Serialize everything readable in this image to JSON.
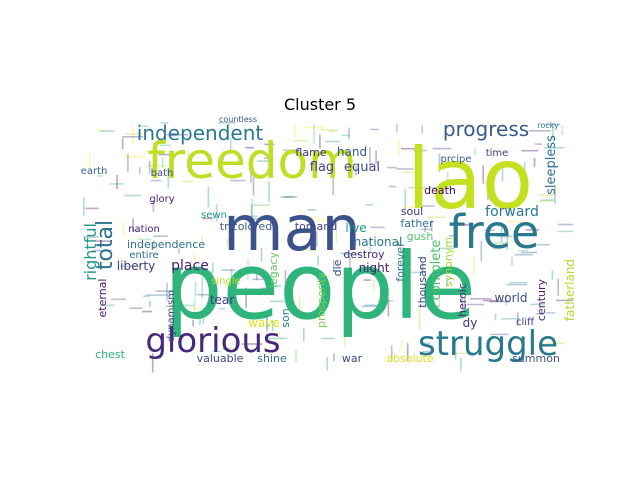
{
  "chart_data": {
    "type": "wordcloud",
    "title": "Cluster 5",
    "words": [
      {
        "text": "people",
        "weight": 1.0,
        "color": "#2fb47c"
      },
      {
        "text": "lao",
        "weight": 0.86,
        "color": "#c5e021"
      },
      {
        "text": "freedom",
        "weight": 0.62,
        "color": "#bddf26"
      },
      {
        "text": "man",
        "weight": 0.58,
        "color": "#3b528b"
      },
      {
        "text": "free",
        "weight": 0.5,
        "color": "#29788e"
      },
      {
        "text": "struggle",
        "weight": 0.4,
        "color": "#29798e"
      },
      {
        "text": "glorious",
        "weight": 0.38,
        "color": "#482878"
      },
      {
        "text": "independent",
        "weight": 0.24,
        "color": "#2a788e"
      },
      {
        "text": "progress",
        "weight": 0.24,
        "color": "#365c8d"
      },
      {
        "text": "total",
        "weight": 0.2,
        "color": "#2c728e"
      },
      {
        "text": "rightful",
        "weight": 0.16,
        "color": "#1f9a8a"
      },
      {
        "text": "sleepless",
        "weight": 0.14,
        "color": "#2d708e"
      },
      {
        "text": "forward",
        "weight": 0.14,
        "color": "#2a788e"
      },
      {
        "text": "complete",
        "weight": 0.12,
        "color": "#4ac16d"
      },
      {
        "text": "flag",
        "weight": 0.12,
        "color": "#414487"
      },
      {
        "text": "equal",
        "weight": 0.12,
        "color": "#3e4989"
      },
      {
        "text": "tricolored",
        "weight": 0.1,
        "color": "#38588c"
      },
      {
        "text": "tomand",
        "weight": 0.1,
        "color": "#433e85"
      },
      {
        "text": "independence",
        "weight": 0.1,
        "color": "#2e6e8e"
      },
      {
        "text": "liberty",
        "weight": 0.1,
        "color": "#443983"
      },
      {
        "text": "place",
        "weight": 0.12,
        "color": "#481f70"
      },
      {
        "text": "national",
        "weight": 0.1,
        "color": "#2a788e"
      },
      {
        "text": "live",
        "weight": 0.1,
        "color": "#1f998a"
      },
      {
        "text": "night",
        "weight": 0.1,
        "color": "#481b6d"
      },
      {
        "text": "hand",
        "weight": 0.1,
        "color": "#3b528b"
      },
      {
        "text": "flame",
        "weight": 0.1,
        "color": "#472d7b"
      },
      {
        "text": "father",
        "weight": 0.1,
        "color": "#2c728e"
      },
      {
        "text": "fatherland",
        "weight": 0.1,
        "color": "#addc30"
      },
      {
        "text": "century",
        "weight": 0.1,
        "color": "#482173"
      },
      {
        "text": "world",
        "weight": 0.1,
        "color": "#3e4a89"
      },
      {
        "text": "heroic",
        "weight": 0.1,
        "color": "#46307e"
      },
      {
        "text": "thousand",
        "weight": 0.1,
        "color": "#3e4989"
      },
      {
        "text": "forever",
        "weight": 0.1,
        "color": "#2b748e"
      },
      {
        "text": "prosperity",
        "weight": 0.1,
        "color": "#7ad151"
      },
      {
        "text": "legacy",
        "weight": 0.1,
        "color": "#5ec962"
      },
      {
        "text": "synonym",
        "weight": 0.1,
        "color": "#a2da37"
      },
      {
        "text": "eternal",
        "weight": 0.08,
        "color": "#481467"
      },
      {
        "text": "tear",
        "weight": 0.1,
        "color": "#453781"
      },
      {
        "text": "wave",
        "weight": 0.1,
        "color": "#dde318"
      },
      {
        "text": "chest",
        "weight": 0.08,
        "color": "#2ab07f"
      },
      {
        "text": "valuable",
        "weight": 0.08,
        "color": "#3f4788"
      },
      {
        "text": "shine",
        "weight": 0.08,
        "color": "#2a768e"
      },
      {
        "text": "war",
        "weight": 0.08,
        "color": "#3e4989"
      },
      {
        "text": "absolute",
        "weight": 0.08,
        "color": "#dae319"
      },
      {
        "text": "summon",
        "weight": 0.08,
        "color": "#3b528b"
      },
      {
        "text": "destroy",
        "weight": 0.08,
        "color": "#482878"
      },
      {
        "text": "die",
        "weight": 0.08,
        "color": "#3e4a89"
      },
      {
        "text": "son",
        "weight": 0.08,
        "color": "#287c8e"
      },
      {
        "text": "soul",
        "weight": 0.08,
        "color": "#46307e"
      },
      {
        "text": "gush",
        "weight": 0.08,
        "color": "#52c569"
      },
      {
        "text": "death",
        "weight": 0.08,
        "color": "#440154"
      },
      {
        "text": "prcipe",
        "weight": 0.07,
        "color": "#365d8d"
      },
      {
        "text": "time",
        "weight": 0.07,
        "color": "#463480"
      },
      {
        "text": "nation",
        "weight": 0.07,
        "color": "#482475"
      },
      {
        "text": "entire",
        "weight": 0.07,
        "color": "#2c718e"
      },
      {
        "text": "sewn",
        "weight": 0.07,
        "color": "#1f968b"
      },
      {
        "text": "single",
        "weight": 0.07,
        "color": "#b5de2b"
      },
      {
        "text": "dynamism",
        "weight": 0.07,
        "color": "#443b84"
      },
      {
        "text": "earth",
        "weight": 0.06,
        "color": "#34618d"
      },
      {
        "text": "bath",
        "weight": 0.06,
        "color": "#3e4c8a"
      },
      {
        "text": "glory",
        "weight": 0.06,
        "color": "#482576"
      },
      {
        "text": "cliff",
        "weight": 0.06,
        "color": "#433d84"
      },
      {
        "text": "dy",
        "weight": 0.08,
        "color": "#46337f"
      },
      {
        "text": "countless",
        "weight": 0.04,
        "color": "#3b528b"
      },
      {
        "text": "rocky",
        "weight": 0.04,
        "color": "#2a788e"
      }
    ]
  }
}
